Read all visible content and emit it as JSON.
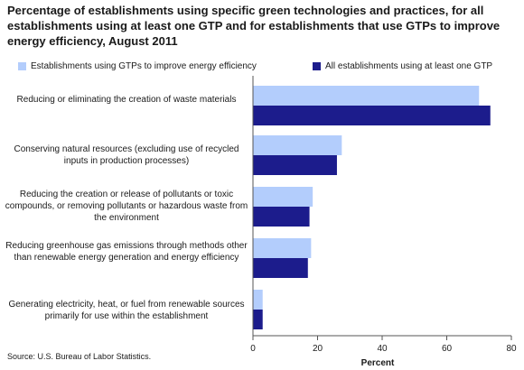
{
  "chart_data": {
    "type": "bar",
    "orientation": "horizontal",
    "title": "Percentage of establishments using specific green technologies and practices, for all establishments using at least one GTP and for establishments that use GTPs to improve energy efficiency, August 2011",
    "categories": [
      "Reducing or eliminating the creation of waste materials",
      "Conserving natural resources (excluding use of recycled inputs in production processes)",
      "Reducing the creation or release of pollutants or toxic compounds, or removing pollutants or hazardous waste from the environment",
      "Reducing greenhouse gas emissions through methods other than renewable energy generation and energy efficiency",
      "Generating electricity, heat, or fuel from renewable sources primarily for use within the establishment"
    ],
    "series": [
      {
        "name": "Establishments using GTPs to improve energy efficiency",
        "color": "#b3cdfc",
        "values": [
          70,
          27.5,
          18.5,
          18,
          3
        ]
      },
      {
        "name": "All establishments using at least one GTP",
        "color": "#1c1c8c",
        "values": [
          73.5,
          26,
          17.5,
          17,
          3
        ]
      }
    ],
    "xlabel": "Percent",
    "ylabel": "",
    "xlim": [
      0,
      80
    ],
    "xticks": [
      "0",
      "20",
      "40",
      "60",
      "80"
    ],
    "grid": false,
    "legend": "top"
  },
  "source": "Source: U.S. Bureau of Labor Statistics."
}
